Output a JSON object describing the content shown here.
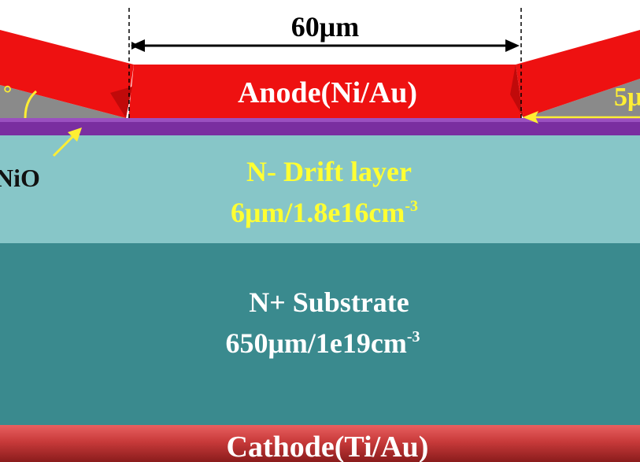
{
  "dimension": {
    "label": "60μm"
  },
  "layers": {
    "anode": {
      "label": "Anode(Ni/Au)",
      "color": "#ee1111"
    },
    "nio": {
      "label": "NiO",
      "color": "#7a2ea0"
    },
    "drift": {
      "name": "N- Drift layer",
      "spec_main": "6μm/1.8e16cm",
      "spec_exp": "-3",
      "color": "#87c6c8",
      "text_color": "#ffff33"
    },
    "substrate": {
      "name": "N+ Substrate",
      "spec_main": "650μm/1e19cm",
      "spec_exp": "-3",
      "color": "#3a8a8e",
      "text_color": "#ffffff"
    },
    "cathode": {
      "label": "Cathode(Ti/Au)",
      "color": "#c83a3a"
    }
  },
  "annotations": {
    "angle_fragment": "°",
    "right_label_fragment": "5μ",
    "arrow_color": "#ffee33"
  }
}
